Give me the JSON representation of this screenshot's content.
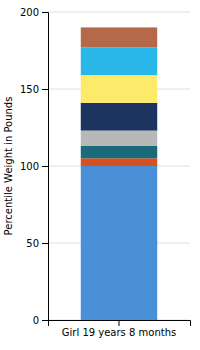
{
  "chart_data": {
    "type": "bar",
    "stacked": true,
    "categories": [
      "Girl 19 years 8 months"
    ],
    "series": [
      {
        "color": "#4a90d9",
        "values": [
          100
        ]
      },
      {
        "color": "#d94f1e",
        "values": [
          5
        ]
      },
      {
        "color": "#1a6b7a",
        "values": [
          8
        ]
      },
      {
        "color": "#b8b8b8",
        "values": [
          10
        ]
      },
      {
        "color": "#1e3460",
        "values": [
          18
        ]
      },
      {
        "color": "#fde96a",
        "values": [
          18
        ]
      },
      {
        "color": "#29b6e8",
        "values": [
          18
        ]
      },
      {
        "color": "#b5694a",
        "values": [
          13
        ]
      }
    ],
    "ylabel": "Percentile Weight in Pounds",
    "ylim": [
      0,
      200
    ],
    "yticks": [
      0,
      50,
      100,
      150,
      200
    ],
    "grid": true
  }
}
